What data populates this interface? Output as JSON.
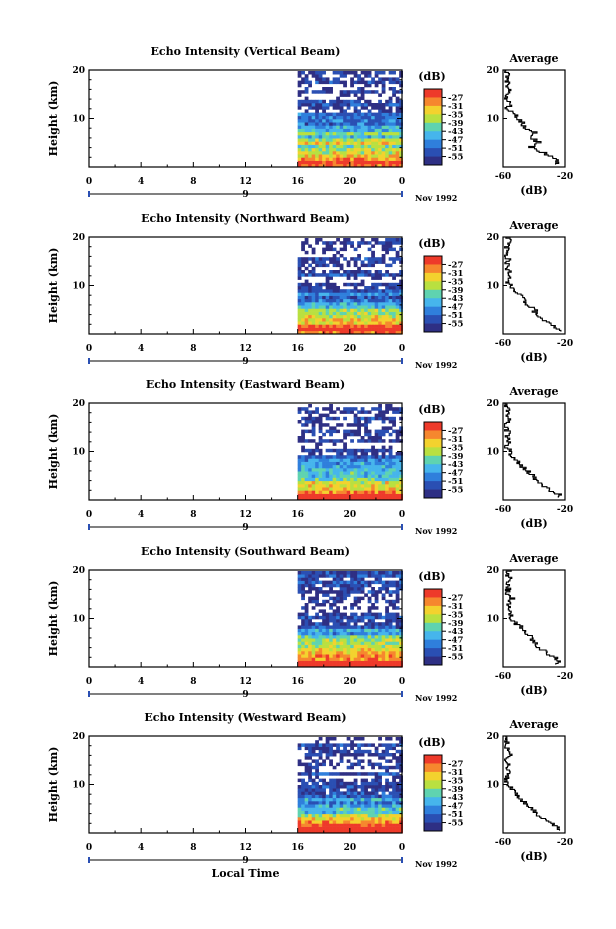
{
  "chart_data": [
    {
      "type": "heatmap",
      "title": "Echo Intensity (Vertical Beam)",
      "ylabel": "Height (km)",
      "x_ticks": [
        "0",
        "4",
        "8",
        "12",
        "16",
        "20",
        "0"
      ],
      "y_ticks": [
        "20",
        "10"
      ],
      "xlim": [
        0,
        24
      ],
      "ylim": [
        0,
        20
      ],
      "date_label": "9",
      "month_label": "Nov 1992",
      "colorbar": {
        "unit": "(dB)",
        "levels": [
          "-27",
          "-31",
          "-35",
          "-39",
          "-43",
          "-47",
          "-51",
          "-55"
        ]
      },
      "data_start_hour": 16,
      "profile_mean_db": [
        {
          "h": 1,
          "db": -25
        },
        {
          "h": 2,
          "db": -28
        },
        {
          "h": 3,
          "db": -35
        },
        {
          "h": 4,
          "db": -42
        },
        {
          "h": 5,
          "db": -37
        },
        {
          "h": 6,
          "db": -43
        },
        {
          "h": 7,
          "db": -40
        },
        {
          "h": 8,
          "db": -46
        },
        {
          "h": 9,
          "db": -48
        },
        {
          "h": 10,
          "db": -51
        },
        {
          "h": 11,
          "db": -53
        },
        {
          "h": 12,
          "db": -57
        },
        {
          "h": 13,
          "db": -54
        },
        {
          "h": 14,
          "db": -58
        },
        {
          "h": 15,
          "db": -57
        },
        {
          "h": 16,
          "db": -55
        },
        {
          "h": 17,
          "db": -58
        },
        {
          "h": 18,
          "db": -56
        },
        {
          "h": 19,
          "db": -57
        },
        {
          "h": 20,
          "db": -59
        }
      ],
      "average_panel": {
        "title": "Average",
        "xlabel": "(dB)",
        "x_ticks": [
          "-60",
          "-20"
        ],
        "xlim": [
          -60,
          -20
        ],
        "y_ticks": [
          "20",
          "10"
        ]
      }
    },
    {
      "type": "heatmap",
      "title": "Echo Intensity (Northward Beam)",
      "ylabel": "Height (km)",
      "x_ticks": [
        "0",
        "4",
        "8",
        "12",
        "16",
        "20",
        "0"
      ],
      "y_ticks": [
        "20",
        "10"
      ],
      "xlim": [
        0,
        24
      ],
      "ylim": [
        0,
        20
      ],
      "date_label": "9",
      "month_label": "Nov 1992",
      "colorbar": {
        "unit": "(dB)",
        "levels": [
          "-27",
          "-31",
          "-35",
          "-39",
          "-43",
          "-47",
          "-51",
          "-55"
        ]
      },
      "data_start_hour": 16,
      "profile_mean_db": [
        {
          "h": 1,
          "db": -24
        },
        {
          "h": 2,
          "db": -29
        },
        {
          "h": 3,
          "db": -34
        },
        {
          "h": 4,
          "db": -40
        },
        {
          "h": 5,
          "db": -39
        },
        {
          "h": 6,
          "db": -44
        },
        {
          "h": 7,
          "db": -47
        },
        {
          "h": 8,
          "db": -50
        },
        {
          "h": 9,
          "db": -53
        },
        {
          "h": 10,
          "db": -56
        },
        {
          "h": 11,
          "db": -58
        },
        {
          "h": 12,
          "db": -55
        },
        {
          "h": 13,
          "db": -57
        },
        {
          "h": 14,
          "db": -58
        },
        {
          "h": 15,
          "db": -56
        },
        {
          "h": 16,
          "db": -59
        },
        {
          "h": 17,
          "db": -57
        },
        {
          "h": 18,
          "db": -58
        },
        {
          "h": 19,
          "db": -56
        },
        {
          "h": 20,
          "db": -58
        }
      ],
      "average_panel": {
        "title": "Average",
        "xlabel": "(dB)",
        "x_ticks": [
          "-60",
          "-20"
        ],
        "xlim": [
          -60,
          -20
        ],
        "y_ticks": [
          "20",
          "10"
        ]
      }
    },
    {
      "type": "heatmap",
      "title": "Echo Intensity (Eastward Beam)",
      "ylabel": "Height (km)",
      "x_ticks": [
        "0",
        "4",
        "8",
        "12",
        "16",
        "20",
        "0"
      ],
      "y_ticks": [
        "20",
        "10"
      ],
      "xlim": [
        0,
        24
      ],
      "ylim": [
        0,
        20
      ],
      "date_label": "9",
      "month_label": "Nov 1992",
      "colorbar": {
        "unit": "(dB)",
        "levels": [
          "-27",
          "-31",
          "-35",
          "-39",
          "-43",
          "-47",
          "-51",
          "-55"
        ]
      },
      "data_start_hour": 16,
      "profile_mean_db": [
        {
          "h": 1,
          "db": -24
        },
        {
          "h": 2,
          "db": -30
        },
        {
          "h": 3,
          "db": -35
        },
        {
          "h": 4,
          "db": -38
        },
        {
          "h": 5,
          "db": -41
        },
        {
          "h": 6,
          "db": -45
        },
        {
          "h": 7,
          "db": -48
        },
        {
          "h": 8,
          "db": -51
        },
        {
          "h": 9,
          "db": -54
        },
        {
          "h": 10,
          "db": -56
        },
        {
          "h": 11,
          "db": -58
        },
        {
          "h": 12,
          "db": -56
        },
        {
          "h": 13,
          "db": -58
        },
        {
          "h": 14,
          "db": -57
        },
        {
          "h": 15,
          "db": -59
        },
        {
          "h": 16,
          "db": -56
        },
        {
          "h": 17,
          "db": -58
        },
        {
          "h": 18,
          "db": -57
        },
        {
          "h": 19,
          "db": -58
        },
        {
          "h": 20,
          "db": -57
        }
      ],
      "average_panel": {
        "title": "Average",
        "xlabel": "(dB)",
        "x_ticks": [
          "-60",
          "-20"
        ],
        "xlim": [
          -60,
          -20
        ],
        "y_ticks": [
          "20",
          "10"
        ]
      }
    },
    {
      "type": "heatmap",
      "title": "Echo Intensity (Southward Beam)",
      "ylabel": "Height (km)",
      "x_ticks": [
        "0",
        "4",
        "8",
        "12",
        "16",
        "20",
        "0"
      ],
      "y_ticks": [
        "20",
        "10"
      ],
      "xlim": [
        0,
        24
      ],
      "ylim": [
        0,
        20
      ],
      "date_label": "9",
      "month_label": "Nov 1992",
      "colorbar": {
        "unit": "(dB)",
        "levels": [
          "-27",
          "-31",
          "-35",
          "-39",
          "-43",
          "-47",
          "-51",
          "-55"
        ]
      },
      "data_start_hour": 16,
      "profile_mean_db": [
        {
          "h": 1,
          "db": -24
        },
        {
          "h": 2,
          "db": -27
        },
        {
          "h": 3,
          "db": -33
        },
        {
          "h": 4,
          "db": -37
        },
        {
          "h": 5,
          "db": -40
        },
        {
          "h": 6,
          "db": -42
        },
        {
          "h": 7,
          "db": -46
        },
        {
          "h": 8,
          "db": -48
        },
        {
          "h": 9,
          "db": -52
        },
        {
          "h": 10,
          "db": -54
        },
        {
          "h": 11,
          "db": -56
        },
        {
          "h": 12,
          "db": -55
        },
        {
          "h": 13,
          "db": -57
        },
        {
          "h": 14,
          "db": -54
        },
        {
          "h": 15,
          "db": -58
        },
        {
          "h": 16,
          "db": -56
        },
        {
          "h": 17,
          "db": -57
        },
        {
          "h": 18,
          "db": -55
        },
        {
          "h": 19,
          "db": -57
        },
        {
          "h": 20,
          "db": -56
        }
      ],
      "average_panel": {
        "title": "Average",
        "xlabel": "(dB)",
        "x_ticks": [
          "-60",
          "-20"
        ],
        "xlim": [
          -60,
          -20
        ],
        "y_ticks": [
          "20",
          "10"
        ]
      }
    },
    {
      "type": "heatmap",
      "title": "Echo Intensity (Westward Beam)",
      "ylabel": "Height (km)",
      "x_ticks": [
        "0",
        "4",
        "8",
        "12",
        "16",
        "20",
        "0"
      ],
      "y_ticks": [
        "20",
        "10"
      ],
      "xlim": [
        0,
        24
      ],
      "ylim": [
        0,
        20
      ],
      "date_label": "9",
      "month_label": "Nov 1992",
      "xlabel": "Local Time",
      "colorbar": {
        "unit": "(dB)",
        "levels": [
          "-27",
          "-31",
          "-35",
          "-39",
          "-43",
          "-47",
          "-51",
          "-55"
        ]
      },
      "data_start_hour": 16,
      "profile_mean_db": [
        {
          "h": 1,
          "db": -24
        },
        {
          "h": 2,
          "db": -29
        },
        {
          "h": 3,
          "db": -34
        },
        {
          "h": 4,
          "db": -39
        },
        {
          "h": 5,
          "db": -42
        },
        {
          "h": 6,
          "db": -45
        },
        {
          "h": 7,
          "db": -49
        },
        {
          "h": 8,
          "db": -52
        },
        {
          "h": 9,
          "db": -55
        },
        {
          "h": 10,
          "db": -57
        },
        {
          "h": 11,
          "db": -58
        },
        {
          "h": 12,
          "db": -56
        },
        {
          "h": 13,
          "db": -58
        },
        {
          "h": 14,
          "db": -57
        },
        {
          "h": 15,
          "db": -59
        },
        {
          "h": 16,
          "db": -56
        },
        {
          "h": 17,
          "db": -58
        },
        {
          "h": 18,
          "db": -57
        },
        {
          "h": 19,
          "db": -58
        },
        {
          "h": 20,
          "db": -59
        }
      ],
      "average_panel": {
        "title": "Average",
        "xlabel": "(dB)",
        "x_ticks": [
          "-60",
          "-20"
        ],
        "xlim": [
          -60,
          -20
        ],
        "y_ticks": [
          "20",
          "10"
        ]
      }
    }
  ],
  "colors": {
    "scale": [
      "#ee3a2a",
      "#f6872e",
      "#f3d22e",
      "#b9e040",
      "#5fd3b0",
      "#46b5ec",
      "#2f7fdc",
      "#2a4fb3",
      "#2e2f84"
    ]
  }
}
